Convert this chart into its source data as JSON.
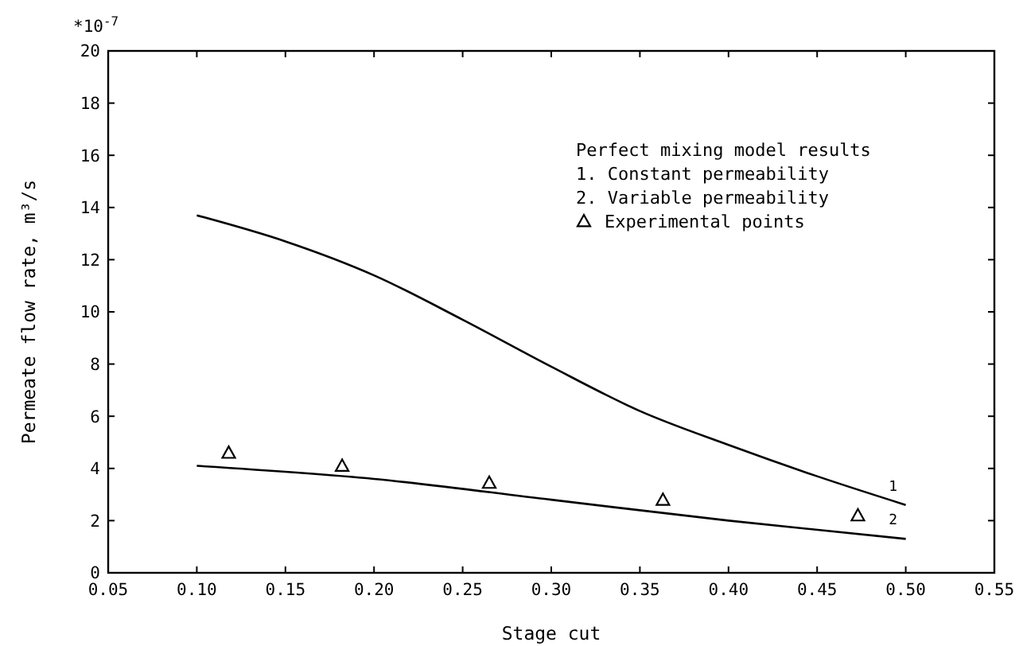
{
  "chart_data": {
    "type": "line",
    "xlabel": "Stage cut",
    "ylabel": "Permeate flow rate, m³/s",
    "legend_title": "Perfect mixing model results",
    "legend": "top right",
    "grid": false,
    "xlim": [
      0.05,
      0.55
    ],
    "xticks": [
      {
        "value": 0.05,
        "label": "0.05"
      },
      {
        "value": 0.1,
        "label": "0.10"
      },
      {
        "value": 0.15,
        "label": "0.15"
      },
      {
        "value": 0.2,
        "label": "0.20"
      },
      {
        "value": 0.25,
        "label": "0.25"
      },
      {
        "value": 0.3,
        "label": "0.30"
      },
      {
        "value": 0.35,
        "label": "0.35"
      },
      {
        "value": 0.4,
        "label": "0.40"
      },
      {
        "value": 0.45,
        "label": "0.45"
      },
      {
        "value": 0.5,
        "label": "0.50"
      },
      {
        "value": 0.55,
        "label": "0.55"
      }
    ],
    "ylim": [
      0,
      20
    ],
    "yticks": [
      0,
      2,
      4,
      6,
      8,
      10,
      12,
      14,
      16,
      18,
      20
    ],
    "series": [
      {
        "name": "1",
        "color": "#000000",
        "marker": "none",
        "x": [
          0.1,
          0.15,
          0.2,
          0.25,
          0.3,
          0.35,
          0.4,
          0.45,
          0.5
        ],
        "values": [
          13.7,
          12.7,
          11.4,
          9.7,
          7.9,
          6.2,
          4.9,
          3.7,
          2.6
        ]
      },
      {
        "name": "2",
        "color": "#000000",
        "marker": "none",
        "x": [
          0.1,
          0.2,
          0.3,
          0.4,
          0.5
        ],
        "values": [
          4.1,
          3.6,
          2.8,
          2.0,
          1.3
        ]
      },
      {
        "name": "Experimental points",
        "type": "scatter",
        "color": "#000000",
        "marker": "triangle",
        "x": [
          0.118,
          0.182,
          0.265,
          0.363,
          0.473
        ],
        "values": [
          4.6,
          4.1,
          3.45,
          2.8,
          2.2
        ]
      }
    ],
    "annotations": [
      "*10$^{-7}$",
      "1. Constant permeability",
      "2. Variable permeability"
    ]
  }
}
